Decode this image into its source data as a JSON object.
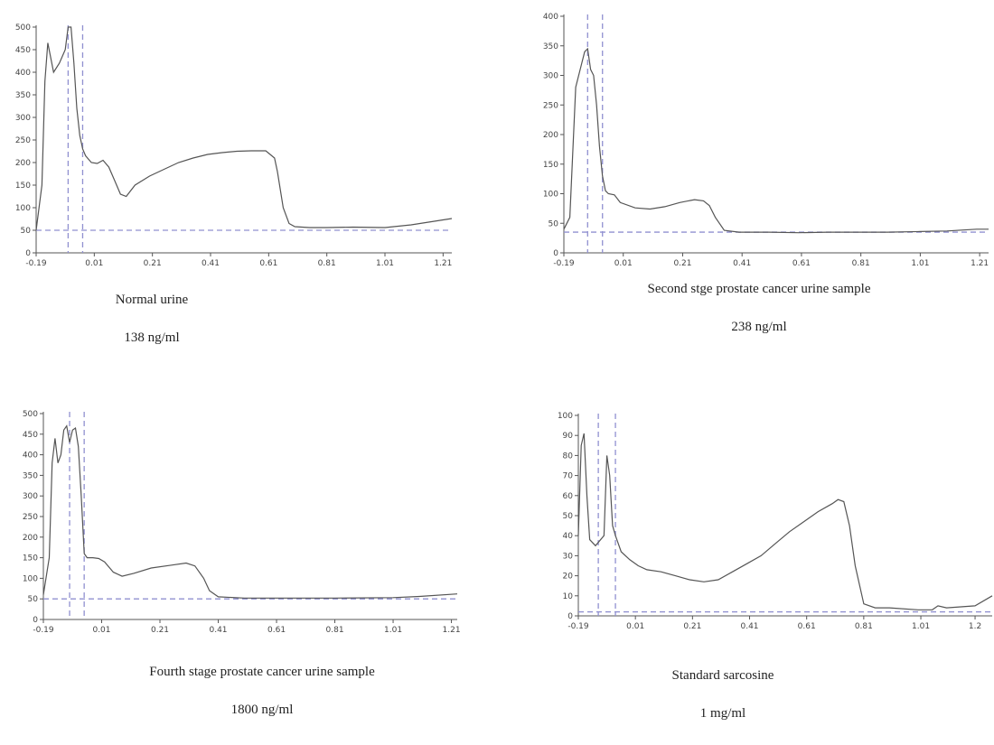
{
  "colors": {
    "curve": "#555555",
    "dashed": "#9090d0"
  },
  "chart_data": [
    {
      "type": "line",
      "caption": "Normal urine",
      "concentration": "138 ng/ml",
      "xticks": [
        "-0.19",
        "0.01",
        "0.21",
        "0.41",
        "0.61",
        "0.81",
        "1.01",
        "1.21"
      ],
      "yticks": [
        "0",
        "50",
        "100",
        "150",
        "200",
        "250",
        "300",
        "350",
        "400",
        "450",
        "500"
      ],
      "xlim": [
        -0.19,
        1.24
      ],
      "ylim": [
        0,
        500
      ],
      "vlines": [
        -0.08,
        -0.03
      ],
      "hline": 50,
      "x": [
        -0.19,
        -0.17,
        -0.16,
        -0.15,
        -0.13,
        -0.11,
        -0.09,
        -0.08,
        -0.07,
        -0.06,
        -0.05,
        -0.04,
        -0.03,
        -0.02,
        0.0,
        0.02,
        0.04,
        0.06,
        0.08,
        0.1,
        0.12,
        0.15,
        0.2,
        0.25,
        0.3,
        0.35,
        0.4,
        0.45,
        0.5,
        0.55,
        0.6,
        0.63,
        0.64,
        0.66,
        0.68,
        0.7,
        0.75,
        0.81,
        0.9,
        1.01,
        1.1,
        1.2,
        1.24
      ],
      "y": [
        50,
        150,
        380,
        465,
        400,
        420,
        450,
        500,
        500,
        420,
        320,
        260,
        230,
        215,
        200,
        198,
        205,
        190,
        160,
        130,
        125,
        150,
        170,
        185,
        200,
        210,
        218,
        222,
        225,
        226,
        226,
        210,
        180,
        100,
        65,
        58,
        56,
        56,
        57,
        56,
        62,
        72,
        76
      ]
    },
    {
      "type": "line",
      "caption": "Second stge prostate cancer urine sample",
      "concentration": "238 ng/ml",
      "xticks": [
        "-0.19",
        "0.01",
        "0.21",
        "0.41",
        "0.61",
        "0.81",
        "1.01",
        "1.21"
      ],
      "yticks": [
        "0",
        "50",
        "100",
        "150",
        "200",
        "250",
        "300",
        "350",
        "400"
      ],
      "xlim": [
        -0.19,
        1.24
      ],
      "ylim": [
        0,
        400
      ],
      "vlines": [
        -0.11,
        -0.06
      ],
      "hline": 35,
      "x": [
        -0.19,
        -0.17,
        -0.15,
        -0.13,
        -0.12,
        -0.11,
        -0.1,
        -0.09,
        -0.08,
        -0.07,
        -0.06,
        -0.05,
        -0.04,
        -0.02,
        0.0,
        0.05,
        0.1,
        0.15,
        0.2,
        0.25,
        0.28,
        0.3,
        0.32,
        0.35,
        0.4,
        0.5,
        0.6,
        0.7,
        0.81,
        0.9,
        1.01,
        1.1,
        1.2,
        1.24
      ],
      "y": [
        40,
        60,
        280,
        320,
        340,
        345,
        310,
        300,
        250,
        180,
        130,
        105,
        100,
        98,
        85,
        76,
        74,
        78,
        85,
        90,
        88,
        80,
        60,
        38,
        35,
        35,
        34,
        35,
        35,
        35,
        36,
        37,
        40,
        40
      ]
    },
    {
      "type": "line",
      "caption": "Fourth stage prostate cancer urine sample",
      "concentration": "1800 ng/ml",
      "xticks": [
        "-0.19",
        "0.01",
        "0.21",
        "0.41",
        "0.61",
        "0.81",
        "1.01",
        "1.21"
      ],
      "yticks": [
        "0",
        "50",
        "100",
        "150",
        "200",
        "250",
        "300",
        "350",
        "400",
        "450",
        "500"
      ],
      "xlim": [
        -0.19,
        1.23
      ],
      "ylim": [
        0,
        500
      ],
      "vlines": [
        -0.1,
        -0.05
      ],
      "hline": 50,
      "x": [
        -0.19,
        -0.17,
        -0.16,
        -0.15,
        -0.14,
        -0.13,
        -0.12,
        -0.11,
        -0.1,
        -0.09,
        -0.08,
        -0.07,
        -0.06,
        -0.05,
        -0.04,
        -0.02,
        0.0,
        0.02,
        0.05,
        0.08,
        0.12,
        0.18,
        0.25,
        0.3,
        0.33,
        0.36,
        0.38,
        0.41,
        0.5,
        0.61,
        0.81,
        1.01,
        1.1,
        1.23
      ],
      "y": [
        60,
        150,
        380,
        440,
        380,
        400,
        460,
        470,
        430,
        460,
        465,
        420,
        300,
        160,
        150,
        150,
        148,
        140,
        115,
        105,
        112,
        125,
        132,
        137,
        130,
        100,
        70,
        55,
        52,
        52,
        52,
        53,
        56,
        62
      ]
    },
    {
      "type": "line",
      "caption": "Standard sarcosine",
      "concentration": "1 mg/ml",
      "xticks": [
        "-0.19",
        "0.01",
        "0.21",
        "0.41",
        "0.61",
        "0.81",
        "1.01",
        "1.2"
      ],
      "yticks": [
        "0",
        "10",
        "20",
        "30",
        "40",
        "50",
        "60",
        "70",
        "80",
        "90",
        "100"
      ],
      "xlim": [
        -0.19,
        1.26
      ],
      "ylim": [
        0,
        100
      ],
      "vlines": [
        -0.12,
        -0.06
      ],
      "hline": 2,
      "x": [
        -0.19,
        -0.18,
        -0.17,
        -0.16,
        -0.15,
        -0.13,
        -0.1,
        -0.09,
        -0.08,
        -0.07,
        -0.06,
        -0.04,
        -0.01,
        0.02,
        0.05,
        0.1,
        0.15,
        0.2,
        0.25,
        0.3,
        0.35,
        0.4,
        0.45,
        0.5,
        0.55,
        0.6,
        0.65,
        0.7,
        0.72,
        0.74,
        0.76,
        0.78,
        0.81,
        0.85,
        0.9,
        1.0,
        1.05,
        1.07,
        1.1,
        1.2,
        1.26
      ],
      "y": [
        40,
        85,
        91,
        60,
        38,
        35,
        40,
        80,
        70,
        45,
        40,
        32,
        28,
        25,
        23,
        22,
        20,
        18,
        17,
        18,
        22,
        26,
        30,
        36,
        42,
        47,
        52,
        56,
        58,
        57,
        45,
        25,
        6,
        4,
        4,
        3,
        3,
        5,
        4,
        5,
        10
      ]
    }
  ]
}
